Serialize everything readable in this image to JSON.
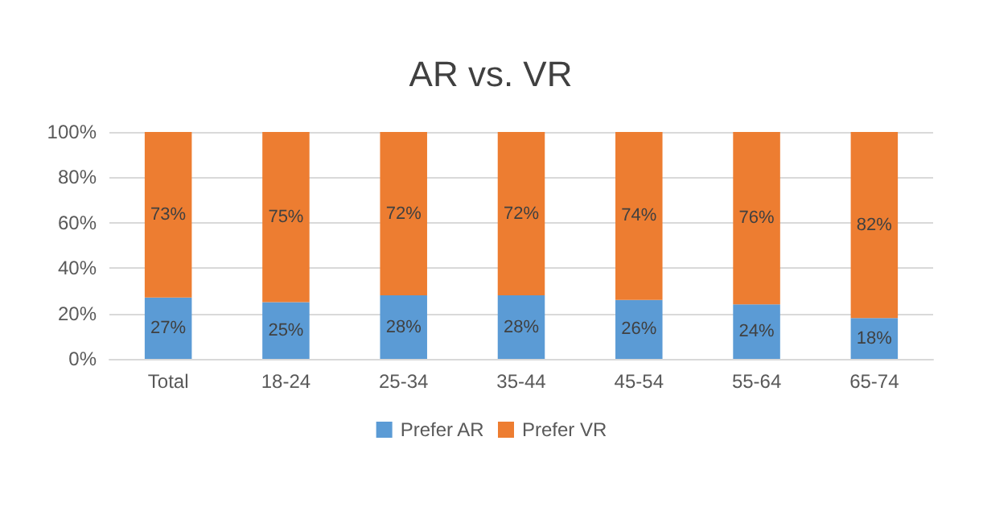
{
  "chart_data": {
    "type": "bar",
    "title": "AR vs. VR",
    "stacked": true,
    "grid": "y",
    "legend": "bottom",
    "categories": [
      "Total",
      "18-24",
      "25-34",
      "35-44",
      "45-54",
      "55-64",
      "65-74"
    ],
    "ylim": [
      0,
      100
    ],
    "yticks": [
      {
        "value": 0,
        "label": "0%"
      },
      {
        "value": 20,
        "label": "20%"
      },
      {
        "value": 40,
        "label": "40%"
      },
      {
        "value": 60,
        "label": "60%"
      },
      {
        "value": 80,
        "label": "80%"
      },
      {
        "value": 100,
        "label": "100%"
      }
    ],
    "series": [
      {
        "name": "Prefer AR",
        "color": "#5b9bd5",
        "values": [
          27,
          25,
          28,
          28,
          26,
          24,
          18
        ],
        "value_labels": [
          "27%",
          "25%",
          "28%",
          "28%",
          "26%",
          "24%",
          "18%"
        ]
      },
      {
        "name": "Prefer VR",
        "color": "#ed7d31",
        "values": [
          73,
          75,
          72,
          72,
          74,
          76,
          82
        ],
        "value_labels": [
          "73%",
          "75%",
          "72%",
          "72%",
          "74%",
          "76%",
          "82%"
        ]
      }
    ]
  }
}
